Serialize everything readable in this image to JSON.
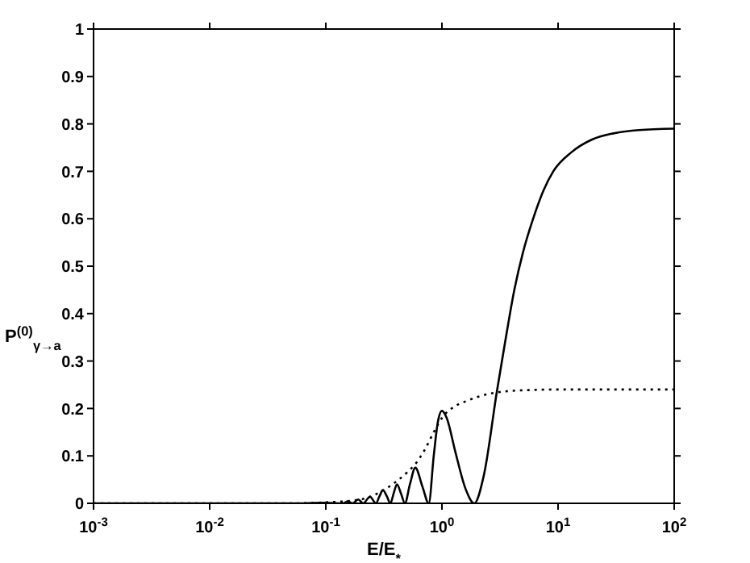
{
  "chart_data": {
    "type": "line",
    "xlabel": "E/E$_{*}$",
    "ylabel": "P$^{(0)}$$_{γ→a}$",
    "log": "x",
    "marker": "none",
    "xlim": [
      0.001,
      100
    ],
    "xticks": [
      {
        "value": 0.001,
        "label": "10$^{-3}$"
      },
      {
        "value": 0.01,
        "label": "10$^{-2}$"
      },
      {
        "value": 0.1,
        "label": "10$^{-1}$"
      },
      {
        "value": 1,
        "label": "10$^{0}$"
      },
      {
        "value": 10,
        "label": "10$^{1}$"
      },
      {
        "value": 100,
        "label": "10$^{2}$"
      }
    ],
    "ylim": [
      0,
      1
    ],
    "yticks": [
      0,
      0.1,
      0.2,
      0.3,
      0.4,
      0.5,
      0.6,
      0.7,
      0.8,
      0.9,
      1
    ],
    "series": [
      {
        "color": "#000000",
        "line_style": "solid",
        "x": [
          0.001,
          0.01,
          0.05,
          0.1,
          0.14,
          0.155,
          0.17,
          0.19,
          0.21,
          0.24,
          0.27,
          0.29,
          0.31,
          0.335,
          0.36,
          0.385,
          0.41,
          0.445,
          0.48,
          0.53,
          0.59,
          0.68,
          0.77,
          0.85,
          0.92,
          1.0,
          1.1,
          1.3,
          1.6,
          1.9,
          2.3,
          2.97,
          3.5,
          4.2,
          5,
          6.1,
          7.5,
          9.1,
          13,
          19.6,
          30,
          50,
          100
        ],
        "values": [
          0,
          0,
          0,
          0.001,
          0,
          0.004,
          0,
          0.008,
          0,
          0.014,
          0,
          0.015,
          0.028,
          0.015,
          0,
          0.022,
          0.04,
          0.02,
          0,
          0.04,
          0.075,
          0.035,
          0,
          0.1,
          0.17,
          0.195,
          0.18,
          0.11,
          0.03,
          0,
          0.06,
          0.235,
          0.34,
          0.45,
          0.53,
          0.6,
          0.66,
          0.7,
          0.74,
          0.767,
          0.78,
          0.787,
          0.79
        ]
      },
      {
        "color": "#000000",
        "line_style": "dotted",
        "x": [
          0.001,
          0.01,
          0.05,
          0.1,
          0.2,
          0.3,
          0.4,
          0.5,
          0.6,
          0.7,
          0.85,
          1,
          1.3,
          1.6,
          2.07,
          3.5,
          6,
          10,
          100
        ],
        "values": [
          0,
          0,
          0,
          0.002,
          0.008,
          0.025,
          0.045,
          0.065,
          0.085,
          0.11,
          0.15,
          0.18,
          0.205,
          0.215,
          0.225,
          0.236,
          0.239,
          0.24,
          0.24
        ]
      }
    ]
  }
}
